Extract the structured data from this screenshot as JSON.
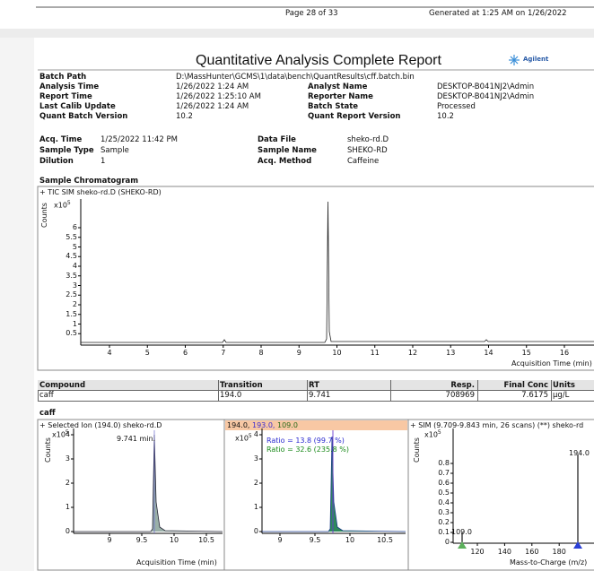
{
  "header": {
    "page": "Page 28 of 33",
    "generated": "Generated at 1:25 AM on 1/26/2022"
  },
  "report": {
    "title": "Quantitative Analysis Complete Report",
    "logo": "Agilent"
  },
  "batch_info": {
    "rows": [
      [
        "Batch Path",
        "D:\\MassHunter\\GCMS\\1\\data\\bench\\QuantResults\\cff.batch.bin"
      ],
      [
        "Analysis Time",
        "1/26/2022 1:24 AM",
        "Analyst Name",
        "DESKTOP-B041NJ2\\Admin"
      ],
      [
        "Report Time",
        "1/26/2022 1:25:10 AM",
        "Reporter Name",
        "DESKTOP-B041NJ2\\Admin"
      ],
      [
        "Last Calib Update",
        "1/26/2022 1:24 AM",
        "Batch State",
        "Processed"
      ],
      [
        "Quant Batch Version",
        "10.2",
        "Quant Report Version",
        "10.2"
      ]
    ]
  },
  "sample_info": {
    "rows": [
      [
        "Acq. Time",
        "1/25/2022 11:42 PM",
        "Data File",
        "sheko-rd.D"
      ],
      [
        "Sample Type",
        "Sample",
        "Sample Name",
        "SHEKO-RD"
      ],
      [
        "Dilution",
        "1",
        "Acq. Method",
        "Caffeine"
      ]
    ]
  },
  "chromatogram": {
    "heading": "Sample Chromatogram",
    "trace": "+ TIC SIM sheko-rd.D (SHEKO-RD)",
    "y_label": "Counts",
    "y_scale": "x10",
    "y_scale_exp": "5",
    "yticks": [
      "0.5",
      "1",
      "1.5",
      "2",
      "2.5",
      "3",
      "3.5",
      "4",
      "4.5",
      "5",
      "5.5",
      "6"
    ],
    "xticks": [
      "4",
      "5",
      "6",
      "7",
      "8",
      "9",
      "10",
      "11",
      "12",
      "13",
      "14",
      "15",
      "16"
    ],
    "x_label": "Acquisition Time (min)"
  },
  "table": {
    "columns": [
      "Compound",
      "Transition",
      "RT",
      "Resp.",
      "Final Conc",
      "Units"
    ],
    "rows": [
      [
        "caff",
        "194.0",
        "9.741",
        "708969",
        "7.6175",
        "µg/L"
      ]
    ]
  },
  "compound": {
    "name": "caff",
    "panels": [
      {
        "title": "+ Selected Ion (194.0) sheko-rd.D",
        "y_label": "Counts",
        "y_scale": "x10",
        "y_scale_exp": "5",
        "peak_label": "9.741 min.",
        "yticks": [
          "0",
          "1",
          "2",
          "3",
          "4"
        ],
        "xticks": [
          "9",
          "9.5",
          "10",
          "10.5"
        ],
        "x_label": "Acquisition Time (min)"
      },
      {
        "ions": [
          "194.0,",
          "193.0,",
          "109.0"
        ],
        "y_scale": "x10",
        "y_scale_exp": "5",
        "ratios": [
          "Ratio = 13.8 (99.7 %)",
          "Ratio = 32.6 (235.8 %)"
        ],
        "yticks": [
          "0",
          "1",
          "2",
          "3",
          "4"
        ],
        "xticks": [
          "9",
          "9.5",
          "10",
          "10.5"
        ]
      },
      {
        "title": "+ SIM (9.709-9.843 min, 26 scans) (**) sheko-rd",
        "y_label": "Counts",
        "y_scale": "x10",
        "y_scale_exp": "5",
        "yticks": [
          "0",
          "0.1",
          "0.2",
          "0.3",
          "0.4",
          "0.5",
          "0.6",
          "0.7",
          "0.8"
        ],
        "xticks": [
          "120",
          "140",
          "160",
          "180"
        ],
        "ion_labels": [
          "109.0",
          "194.0"
        ],
        "x_label": "Mass-to-Charge (m/z)"
      }
    ]
  }
}
